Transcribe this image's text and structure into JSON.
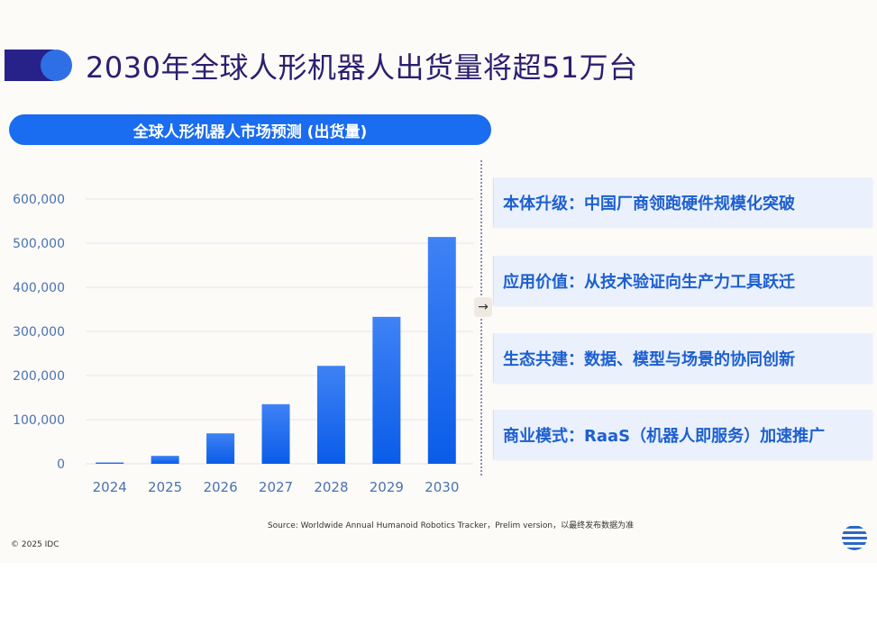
{
  "header": {
    "title": "2030年全球人形机器人出货量将超51万台"
  },
  "chart_data": {
    "type": "bar",
    "title": "全球人形机器人市场预测 (出货量)",
    "categories": [
      "2024",
      "2025",
      "2026",
      "2027",
      "2028",
      "2029",
      "2030"
    ],
    "values": [
      3000,
      18000,
      69000,
      135000,
      222000,
      333000,
      514000
    ],
    "ylim": [
      0,
      600000
    ],
    "yticks": [
      0,
      100000,
      200000,
      300000,
      400000,
      500000,
      600000
    ],
    "ytick_labels": [
      "0",
      "100,000",
      "200,000",
      "300,000",
      "400,000",
      "500,000",
      "600,000"
    ],
    "grid": true,
    "bar_color_top": "#3f82f5",
    "bar_color_bottom": "#0a5ce8"
  },
  "highlights": [
    "本体升级：中国厂商领跑硬件规模化突破",
    "应用价值：从技术验证向生产力工具跃迁",
    "生态共建：数据、模型与场景的协同创新",
    "商业模式：RaaS（机器人即服务）加速推广"
  ],
  "arrow_icon": "→",
  "footer": {
    "source": "Source: Worldwide Annual Humanoid Robotics Tracker，Prelim version，以最终发布数据为准",
    "copyright": "© 2025 IDC",
    "logo": "IDC globe logo"
  }
}
